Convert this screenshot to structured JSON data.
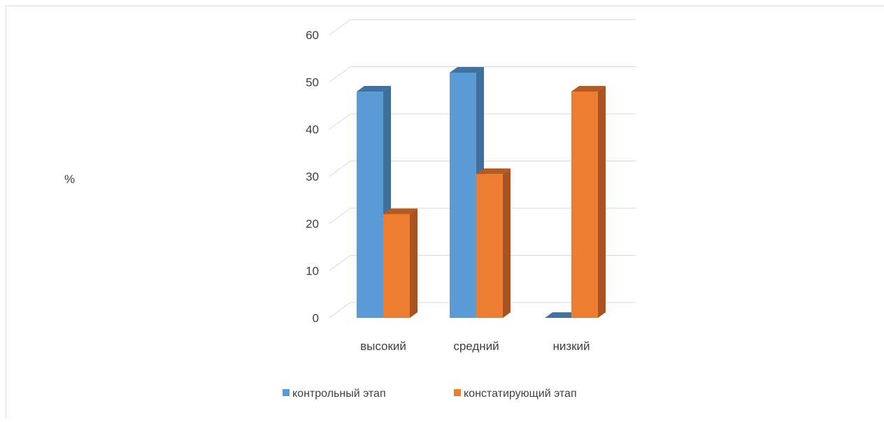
{
  "chart_data": {
    "type": "bar",
    "title": "",
    "xlabel": "",
    "ylabel": "%",
    "ylim": [
      0,
      60
    ],
    "yticks": [
      0,
      10,
      20,
      30,
      40,
      50,
      60
    ],
    "categories": [
      "высокий",
      "средний",
      "низкий"
    ],
    "series": [
      {
        "name": "контрольный этап",
        "values": [
          48,
          52,
          0
        ],
        "color": "#5b9bd5",
        "side_color": "#3f6f9c",
        "top_color": "#41719c"
      },
      {
        "name": "констатирующий этап",
        "values": [
          22,
          30.5,
          48
        ],
        "color": "#ed7d31",
        "side_color": "#a85322",
        "top_color": "#b35a25"
      }
    ],
    "grid": true,
    "legend_position": "bottom",
    "style": "3d-clustered-column"
  }
}
